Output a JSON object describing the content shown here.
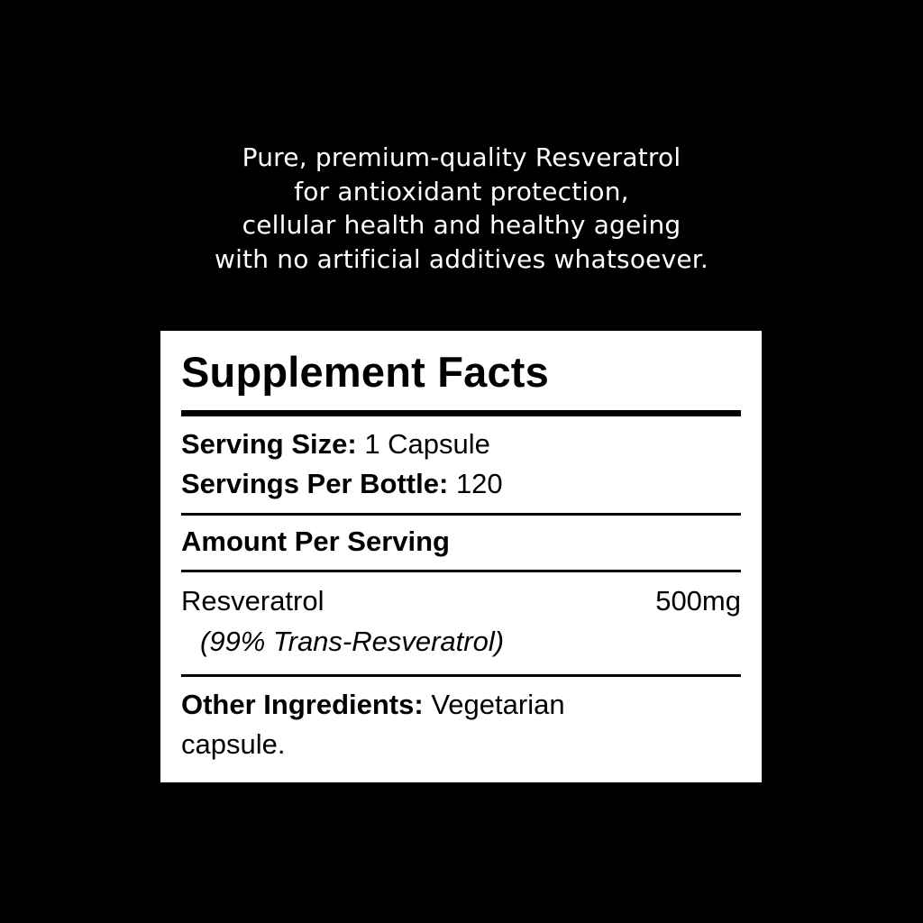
{
  "tagline": [
    "Pure, premium-quality Resveratrol",
    "for antioxidant protection,",
    "cellular health and healthy ageing",
    "with no artificial additives whatsoever."
  ],
  "facts": {
    "title": "Supplement Facts",
    "serving_size_label": "Serving Size:",
    "serving_size_value": "1 Capsule",
    "servings_per_bottle_label": "Servings Per Bottle:",
    "servings_per_bottle_value": "120",
    "amount_header": "Amount Per Serving",
    "ingredient_name": "Resveratrol",
    "ingredient_amount": "500mg",
    "ingredient_note": "(99% Trans-Resveratrol)",
    "other_label": "Other Ingredients:",
    "other_value_line1": "Vegetarian",
    "other_value_line2": "capsule."
  }
}
